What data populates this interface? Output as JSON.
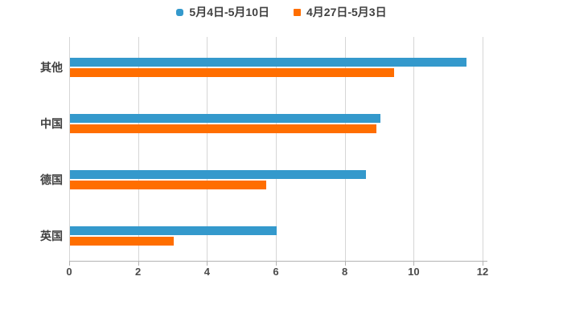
{
  "chart_data": {
    "type": "bar",
    "orientation": "horizontal",
    "title": "",
    "categories": [
      "其他",
      "中国",
      "德国",
      "英国"
    ],
    "series": [
      {
        "name": "5月4日-5月10日",
        "color": "#3499cc",
        "marker": "rounded-square",
        "values": [
          11.5,
          9.0,
          8.6,
          6.0
        ]
      },
      {
        "name": "4月27日-5月3日",
        "color": "#ff6e00",
        "marker": "square",
        "values": [
          9.4,
          8.9,
          5.7,
          3.0
        ]
      }
    ],
    "xlim": [
      0,
      12
    ],
    "xticks": [
      "0",
      "2",
      "4",
      "6",
      "8",
      "10",
      "12"
    ],
    "grid": true,
    "legend_position": "top",
    "colors": {
      "grid": "#d6d6d6",
      "axis": "#b3b3b3",
      "text": "#404040"
    }
  }
}
